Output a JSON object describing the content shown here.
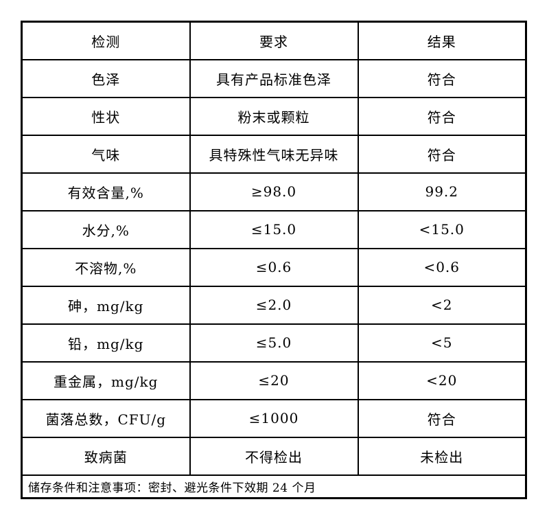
{
  "table": {
    "headers": {
      "test": "检测",
      "requirement": "要求",
      "result": "结果"
    },
    "rows": [
      {
        "test": "色泽",
        "requirement": "具有产品标准色泽",
        "result": "符合"
      },
      {
        "test": "性状",
        "requirement": "粉末或颗粒",
        "result": "符合"
      },
      {
        "test": "气味",
        "requirement": "具特殊性气味无异味",
        "result": "符合"
      },
      {
        "test": "有效含量,%",
        "requirement": "≥98.0",
        "result": "99.2"
      },
      {
        "test": "水分,%",
        "requirement": "≤15.0",
        "result": "<15.0"
      },
      {
        "test": "不溶物,%",
        "requirement": "≤0.6",
        "result": "<0.6"
      },
      {
        "test": "砷，mg/kg",
        "requirement": "≤2.0",
        "result": "<2"
      },
      {
        "test": "铅，mg/kg",
        "requirement": "≤5.0",
        "result": "<5"
      },
      {
        "test": "重金属，mg/kg",
        "requirement": "≤20",
        "result": "<20"
      },
      {
        "test": "菌落总数，CFU/g",
        "requirement": "≤1000",
        "result": "符合"
      },
      {
        "test": "致病菌",
        "requirement": "不得检出",
        "result": "未检出"
      }
    ],
    "footer": "储存条件和注意事项：密封、避光条件下效期 24 个月"
  },
  "colors": {
    "background": "#ffffff",
    "border": "#000000",
    "text": "#000000"
  }
}
